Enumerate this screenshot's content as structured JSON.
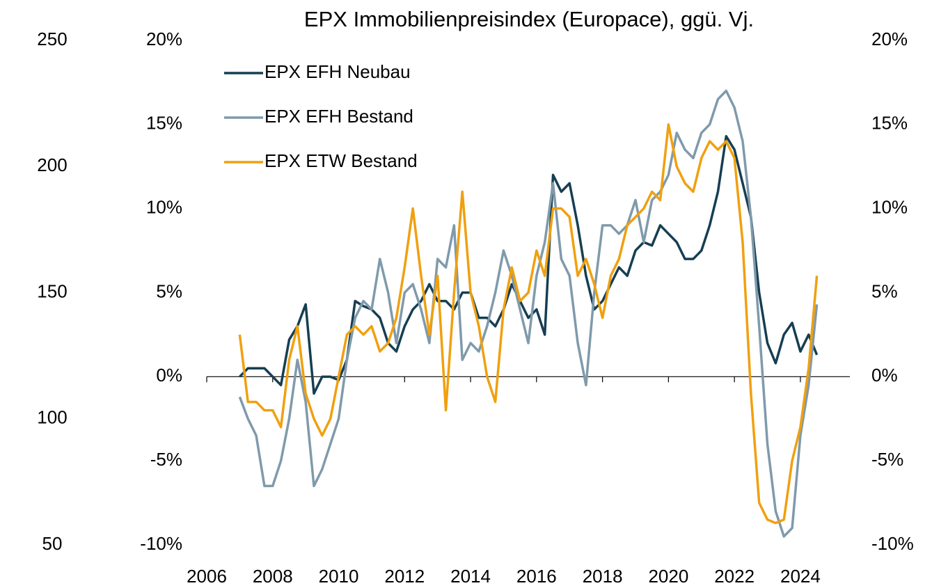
{
  "chart_data": {
    "type": "line",
    "title": "EPX Immobilienpreisindex (Europace), ggü. Vj.",
    "x": [
      2007,
      2007.25,
      2007.5,
      2007.75,
      2008,
      2008.25,
      2008.5,
      2008.75,
      2009,
      2009.25,
      2009.5,
      2009.75,
      2010,
      2010.25,
      2010.5,
      2010.75,
      2011,
      2011.25,
      2011.5,
      2011.75,
      2012,
      2012.25,
      2012.5,
      2012.75,
      2013,
      2013.25,
      2013.5,
      2013.75,
      2014,
      2014.25,
      2014.5,
      2014.75,
      2015,
      2015.25,
      2015.5,
      2015.75,
      2016,
      2016.25,
      2016.5,
      2016.75,
      2017,
      2017.25,
      2017.5,
      2017.75,
      2018,
      2018.25,
      2018.5,
      2018.75,
      2019,
      2019.25,
      2019.5,
      2019.75,
      2020,
      2020.25,
      2020.5,
      2020.75,
      2021,
      2021.25,
      2021.5,
      2021.75,
      2022,
      2022.25,
      2022.5,
      2022.75,
      2023,
      2023.25,
      2023.5,
      2023.75,
      2024,
      2024.25,
      2024.5
    ],
    "series": [
      {
        "name": "EPX EFH Neubau",
        "color": "#163e52",
        "values": [
          0,
          0.5,
          0.5,
          0.5,
          0,
          -0.5,
          2.2,
          3.0,
          4.3,
          -1.0,
          0,
          0,
          -0.2,
          1.0,
          4.5,
          4.2,
          4.0,
          3.5,
          2.0,
          1.5,
          3.0,
          4.0,
          4.5,
          5.5,
          4.5,
          4.5,
          4.0,
          5.0,
          5.0,
          3.5,
          3.5,
          3.0,
          4.0,
          5.5,
          4.5,
          3.5,
          4.0,
          2.5,
          12.0,
          11.0,
          11.5,
          9.0,
          6.0,
          4.0,
          4.5,
          5.5,
          6.5,
          6.0,
          7.5,
          8.0,
          7.8,
          9.0,
          8.5,
          8.0,
          7.0,
          7.0,
          7.5,
          9.0,
          11.0,
          14.3,
          13.5,
          11.5,
          9.5,
          5.0,
          2.0,
          0.8,
          2.5,
          3.2,
          1.5,
          2.5,
          1.3
        ]
      },
      {
        "name": "EPX EFH Bestand",
        "color": "#7f9aab",
        "values": [
          -1.2,
          -2.5,
          -3.5,
          -6.5,
          -6.5,
          -5.0,
          -2.5,
          1.0,
          -1.5,
          -6.5,
          -5.5,
          -4.0,
          -2.5,
          1.0,
          3.5,
          4.5,
          4.0,
          7.0,
          5.0,
          2.0,
          5.0,
          5.5,
          4.0,
          2.0,
          7.0,
          6.5,
          9.0,
          1.0,
          2.0,
          1.5,
          3.0,
          5.0,
          7.5,
          6.0,
          4.0,
          2.0,
          6.0,
          8.0,
          11.5,
          7.0,
          6.0,
          2.0,
          -0.5,
          5.0,
          9.0,
          9.0,
          8.5,
          9.0,
          10.5,
          8.0,
          10.5,
          11.0,
          12.0,
          14.5,
          13.5,
          13.0,
          14.5,
          15.0,
          16.5,
          17.0,
          16.0,
          14.0,
          9.5,
          3.0,
          -4.0,
          -8.0,
          -9.5,
          -9.0,
          -3.5,
          -0.5,
          4.3
        ]
      },
      {
        "name": "EPX ETW Bestand",
        "color": "#f0a00f",
        "values": [
          2.5,
          -1.5,
          -1.5,
          -2.0,
          -2.0,
          -3.0,
          1.0,
          3.0,
          -1.0,
          -2.5,
          -3.5,
          -2.5,
          0.0,
          2.5,
          3.0,
          2.5,
          3.0,
          1.5,
          2.0,
          3.5,
          6.5,
          10.0,
          6.0,
          2.5,
          6.0,
          -2.0,
          5.0,
          11.0,
          5.0,
          3.0,
          0.0,
          -1.5,
          4.0,
          6.5,
          4.5,
          5.0,
          7.5,
          6.0,
          10.0,
          10.0,
          9.5,
          6.0,
          7.0,
          5.5,
          3.5,
          6.0,
          7.0,
          9.0,
          9.5,
          10.0,
          11.0,
          10.5,
          15.0,
          12.5,
          11.5,
          11.0,
          13.0,
          14.0,
          13.5,
          14.0,
          13.0,
          8.0,
          -1.0,
          -7.5,
          -8.5,
          -8.7,
          -8.5,
          -5.0,
          -3.0,
          0.5,
          6.0
        ]
      }
    ],
    "xlim": [
      2006,
      2025.5
    ],
    "xticks": [
      2006,
      2008,
      2010,
      2012,
      2014,
      2016,
      2018,
      2020,
      2022,
      2024
    ],
    "ylim": [
      -10,
      20
    ],
    "yticks": [
      {
        "value": -10,
        "label": "-10%"
      },
      {
        "value": -5,
        "label": "-5%"
      },
      {
        "value": 0,
        "label": "0%"
      },
      {
        "value": 5,
        "label": "5%"
      },
      {
        "value": 10,
        "label": "10%"
      },
      {
        "value": 15,
        "label": "15%"
      },
      {
        "value": 20,
        "label": "20%"
      }
    ],
    "y2lim": [
      -10,
      20
    ],
    "y2ticks": [
      {
        "value": -10,
        "label": "-10%"
      },
      {
        "value": -5,
        "label": "-5%"
      },
      {
        "value": 0,
        "label": "0%"
      },
      {
        "value": 5,
        "label": "5%"
      },
      {
        "value": 10,
        "label": "10%"
      },
      {
        "value": 15,
        "label": "15%"
      },
      {
        "value": 20,
        "label": "20%"
      }
    ],
    "y3lim": [
      50,
      250
    ],
    "y3ticks": [
      50,
      100,
      150,
      200,
      250
    ],
    "legend": "top-left"
  }
}
